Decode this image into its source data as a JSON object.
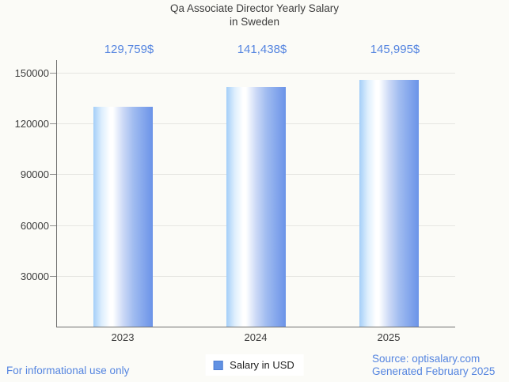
{
  "title": {
    "line1": "Qa Associate Director Yearly Salary",
    "line2": "in Sweden"
  },
  "chart_data": {
    "type": "bar",
    "categories": [
      "2023",
      "2024",
      "2025"
    ],
    "values": [
      129759,
      141438,
      145995
    ],
    "value_labels": [
      "129,759$",
      "141,438$",
      "145,995$"
    ],
    "series": [
      {
        "name": "Salary in USD",
        "values": [
          129759,
          141438,
          145995
        ]
      }
    ],
    "title": "Qa Associate Director Yearly Salary in Sweden",
    "xlabel": "",
    "ylabel": "",
    "ylim": [
      0,
      150000
    ],
    "yticks": [
      30000,
      60000,
      90000,
      120000,
      150000
    ],
    "grid": true,
    "legend_position": "bottom"
  },
  "legend": {
    "label": "Salary in USD",
    "marker_color": "#6191e3"
  },
  "footer": {
    "disclaimer": "For informational use only",
    "source_line1": "Source: optisalary.com",
    "source_line2": "Generated February 2025"
  },
  "colors": {
    "background": "#fbfbf7",
    "value_text": "#5585e0",
    "footer_text": "#5585e0",
    "title_text": "#3d3d3d",
    "bar_left": "#a4cef8",
    "bar_mid": "#ffffff",
    "bar_right": "#6b93e8",
    "gridline": "#e6e6e2",
    "axis": "#6f6f6f"
  }
}
